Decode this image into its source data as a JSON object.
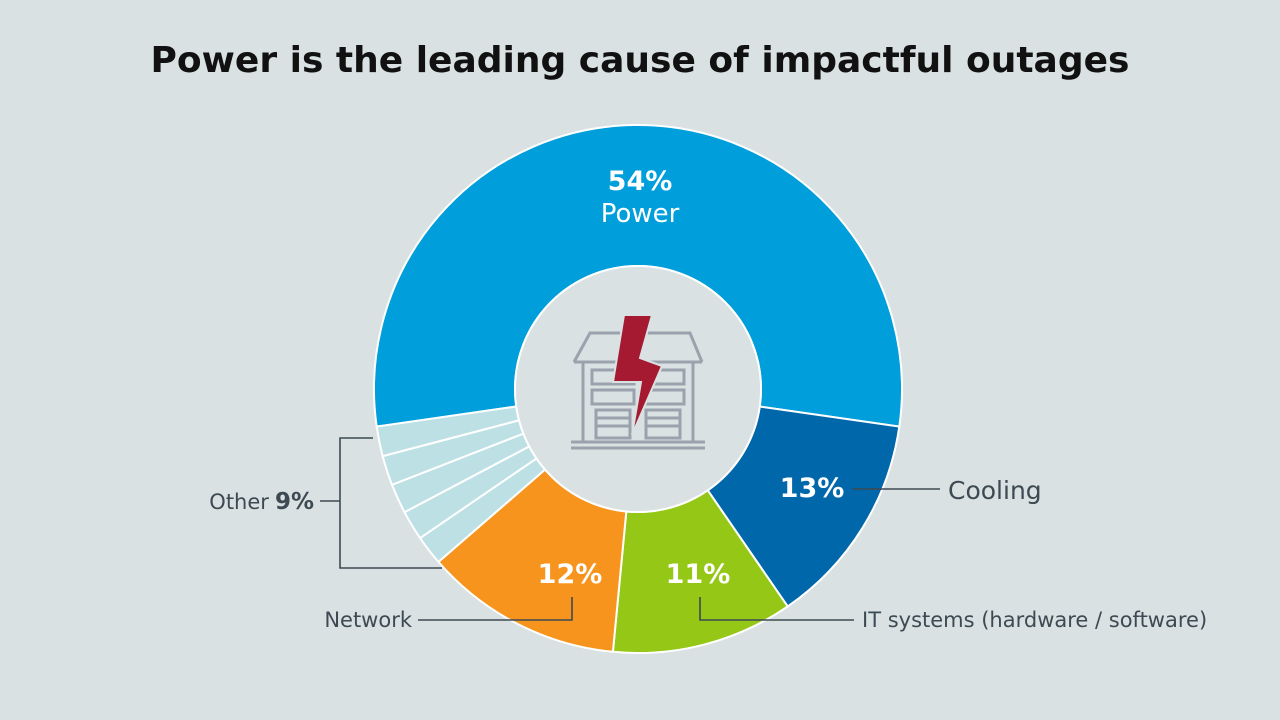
{
  "chart_data": {
    "type": "pie",
    "title": "Power is the leading cause of impactful outages",
    "slices": [
      {
        "label": "Power",
        "value": 54,
        "value_label": "54%",
        "color": "#009edb"
      },
      {
        "label": "Cooling",
        "value": 13,
        "value_label": "13%",
        "color": "#0067ab"
      },
      {
        "label": "IT systems (hardware / software)",
        "value": 11,
        "value_label": "11%",
        "color": "#95c816"
      },
      {
        "label": "Network",
        "value": 12,
        "value_label": "12%",
        "color": "#f7941d"
      },
      {
        "label": "Other",
        "value": 9,
        "value_label": "9%",
        "color": "#bde0e4",
        "subdivisions": 5
      }
    ],
    "donut": true,
    "center_icon": "data-center-lightning-icon",
    "colors": {
      "background": "#d9e1e3",
      "separator": "#ffffff",
      "center": "#d9e1e3",
      "lightning": "#a51a31",
      "building": "#9aa3ad"
    }
  }
}
